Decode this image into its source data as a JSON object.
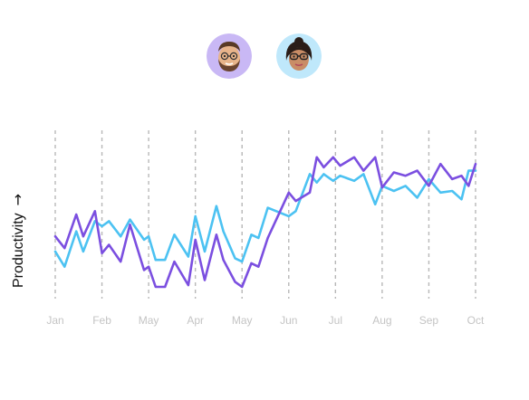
{
  "avatars": [
    {
      "icon": "bearded-man-memoji-icon",
      "bg": "#c9b8f5"
    },
    {
      "icon": "woman-glasses-memoji-icon",
      "bg": "#bfe8fb"
    }
  ],
  "chart_data": {
    "type": "line",
    "title": "",
    "xlabel": "",
    "ylabel": "Productivity",
    "ylabel_arrow": "→",
    "categories": [
      "Jan",
      "Feb",
      "May",
      "Apr",
      "May",
      "Jun",
      "Jul",
      "Aug",
      "Sep",
      "Oct"
    ],
    "ylim": [
      0,
      100
    ],
    "grid": "vertical-dashed",
    "y_ticks_shown": false,
    "series": [
      {
        "color": "#7b4fe0",
        "x": [
          0,
          0.2,
          0.45,
          0.6,
          0.85,
          1,
          1.15,
          1.4,
          1.6,
          1.9,
          2,
          2.15,
          2.35,
          2.55,
          2.85,
          3,
          3.2,
          3.45,
          3.6,
          3.85,
          4,
          4.2,
          4.35,
          4.55,
          5,
          5.15,
          5.45,
          5.6,
          5.75,
          5.95,
          6.1,
          6.4,
          6.6,
          6.85,
          7,
          7.25,
          7.5,
          7.75,
          8,
          8.25,
          8.5,
          8.7,
          8.85,
          9
        ],
        "values": [
          37,
          30,
          50,
          37,
          52,
          27,
          32,
          22,
          44,
          17,
          19,
          7,
          7,
          22,
          8,
          35,
          11,
          38,
          23,
          10,
          7,
          21,
          19,
          36,
          63,
          58,
          63,
          84,
          78,
          84,
          79,
          84,
          76,
          84,
          66,
          75,
          73,
          76,
          67,
          80,
          71,
          73,
          67,
          80
        ]
      },
      {
        "color": "#4cc2f2",
        "x": [
          0,
          0.2,
          0.45,
          0.6,
          0.85,
          1,
          1.15,
          1.4,
          1.6,
          1.9,
          2,
          2.15,
          2.35,
          2.55,
          2.85,
          3,
          3.2,
          3.45,
          3.6,
          3.85,
          4,
          4.2,
          4.35,
          4.55,
          5,
          5.15,
          5.45,
          5.6,
          5.75,
          5.95,
          6.1,
          6.4,
          6.6,
          6.85,
          7,
          7.25,
          7.5,
          7.75,
          8,
          8.25,
          8.5,
          8.7,
          8.85,
          9
        ],
        "values": [
          28,
          19,
          40,
          28,
          46,
          43,
          46,
          37,
          47,
          35,
          37,
          23,
          23,
          38,
          25,
          49,
          28,
          55,
          40,
          24,
          22,
          38,
          36,
          54,
          49,
          52,
          74,
          69,
          74,
          70,
          73,
          70,
          74,
          56,
          67,
          64,
          67,
          60,
          71,
          63,
          64,
          59,
          76,
          76
        ]
      }
    ]
  }
}
